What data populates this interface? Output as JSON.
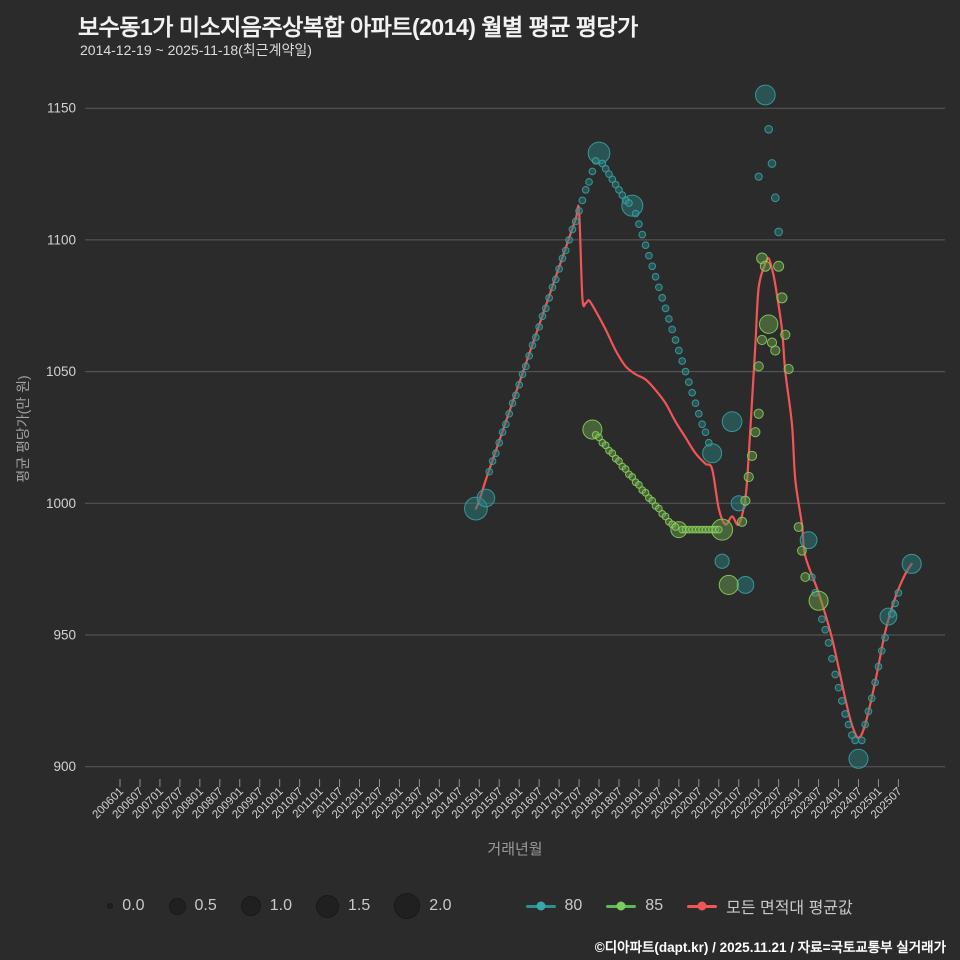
{
  "header": {
    "title": "보수동1가 미소지음주상복합 아파트(2014) 월별 평균 평당가",
    "subtitle": "2014-12-19 ~ 2025-11-18(최근계약일)"
  },
  "footer": {
    "credit": "©디아파트(dapt.kr) / 2025.11.21 / 자료=국토교통부 실거래가"
  },
  "colors": {
    "background": "#2b2b2b",
    "grid": "#6b6b6b",
    "tick_text": "#d2d2d2",
    "axis_title_text": "#9a9a9a",
    "title_text": "#f2f2f2",
    "teal_stroke": "#3aa6a6",
    "teal_fill": "#2a7d7d",
    "green_stroke": "#8fd45e",
    "green_fill": "#669c4a",
    "red_line": "#f25555",
    "legend_bubble": "#202020",
    "footer_text": "#ffffff"
  },
  "legend": {
    "sizes": [
      {
        "label": "0.0"
      },
      {
        "label": "0.5"
      },
      {
        "label": "1.0"
      },
      {
        "label": "1.5"
      },
      {
        "label": "2.0"
      }
    ]
  },
  "chart_data": {
    "type": "scatter",
    "title": "보수동1가 미소지음주상복합 아파트(2014) 월별 평균 평당가",
    "subtitle": "2014-12-19 ~ 2025-11-18(최근계약일)",
    "xlabel": "거래년월",
    "ylabel": "평균 평당가(만 원)",
    "ylim": [
      885,
      1162
    ],
    "y_ticks": [
      900,
      950,
      1000,
      1050,
      1100,
      1150
    ],
    "x_ticks": [
      "200601",
      "200607",
      "200701",
      "200707",
      "200801",
      "200807",
      "200901",
      "200907",
      "201001",
      "201007",
      "201101",
      "201107",
      "201201",
      "201207",
      "201301",
      "201307",
      "201401",
      "201407",
      "201501",
      "201507",
      "201601",
      "201607",
      "201701",
      "201707",
      "201801",
      "201807",
      "201901",
      "201907",
      "202001",
      "202007",
      "202101",
      "202107",
      "202201",
      "202207",
      "202301",
      "202307",
      "202401",
      "202407",
      "202501",
      "202507"
    ],
    "grid": true,
    "legend_position": "bottom",
    "size_legend_values": [
      0.0,
      0.5,
      1.0,
      1.5,
      2.0
    ],
    "series": [
      {
        "name": "80",
        "type": "scatter",
        "stroke": "#3aa6a6",
        "fill": "#2a7d7d",
        "points": [
          [
            201412,
            998,
            1.8
          ],
          [
            201503,
            1002,
            1.0
          ],
          [
            201504,
            1012
          ],
          [
            201505,
            1016
          ],
          [
            201506,
            1019
          ],
          [
            201507,
            1023
          ],
          [
            201508,
            1027
          ],
          [
            201509,
            1030
          ],
          [
            201510,
            1034
          ],
          [
            201511,
            1038
          ],
          [
            201512,
            1041
          ],
          [
            201601,
            1045
          ],
          [
            201602,
            1049
          ],
          [
            201603,
            1052
          ],
          [
            201604,
            1056
          ],
          [
            201605,
            1060
          ],
          [
            201606,
            1063
          ],
          [
            201607,
            1067
          ],
          [
            201608,
            1071
          ],
          [
            201609,
            1074
          ],
          [
            201610,
            1078
          ],
          [
            201611,
            1082
          ],
          [
            201612,
            1085
          ],
          [
            201701,
            1089
          ],
          [
            201702,
            1093
          ],
          [
            201703,
            1096
          ],
          [
            201704,
            1100
          ],
          [
            201705,
            1104
          ],
          [
            201706,
            1107
          ],
          [
            201707,
            1111
          ],
          [
            201708,
            1115
          ],
          [
            201709,
            1119
          ],
          [
            201710,
            1122
          ],
          [
            201711,
            1126
          ],
          [
            201712,
            1130
          ],
          [
            201801,
            1133,
            1.6
          ],
          [
            201802,
            1129
          ],
          [
            201803,
            1127
          ],
          [
            201804,
            1125
          ],
          [
            201805,
            1123
          ],
          [
            201806,
            1121
          ],
          [
            201807,
            1119
          ],
          [
            201808,
            1117
          ],
          [
            201809,
            1115
          ],
          [
            201810,
            1114
          ],
          [
            201811,
            1113,
            1.5
          ],
          [
            201812,
            1110
          ],
          [
            201901,
            1106
          ],
          [
            201902,
            1102
          ],
          [
            201903,
            1098
          ],
          [
            201904,
            1094
          ],
          [
            201905,
            1090
          ],
          [
            201906,
            1086
          ],
          [
            201907,
            1082
          ],
          [
            201908,
            1078
          ],
          [
            201909,
            1074
          ],
          [
            201910,
            1070
          ],
          [
            201911,
            1066
          ],
          [
            201912,
            1062
          ],
          [
            202001,
            1058
          ],
          [
            202002,
            1054
          ],
          [
            202003,
            1050
          ],
          [
            202004,
            1046
          ],
          [
            202005,
            1042
          ],
          [
            202006,
            1038
          ],
          [
            202007,
            1034
          ],
          [
            202008,
            1030
          ],
          [
            202009,
            1027
          ],
          [
            202010,
            1023
          ],
          [
            202011,
            1019,
            1.2
          ],
          [
            202102,
            978,
            0.6
          ],
          [
            202105,
            1031,
            1.3
          ],
          [
            202107,
            1000,
            0.7
          ],
          [
            202109,
            969,
            0.9
          ],
          [
            202201,
            1124,
            0.1
          ],
          [
            202203,
            1155,
            1.3
          ],
          [
            202204,
            1142,
            0.12
          ],
          [
            202205,
            1129,
            0.12
          ],
          [
            202206,
            1116,
            0.12
          ],
          [
            202207,
            1103,
            0.12
          ],
          [
            202304,
            986,
            0.9
          ],
          [
            202305,
            972
          ],
          [
            202306,
            966
          ],
          [
            202308,
            956
          ],
          [
            202309,
            952
          ],
          [
            202310,
            947
          ],
          [
            202311,
            941
          ],
          [
            202312,
            935
          ],
          [
            202401,
            930
          ],
          [
            202402,
            925
          ],
          [
            202403,
            920
          ],
          [
            202404,
            916
          ],
          [
            202405,
            912
          ],
          [
            202406,
            910
          ],
          [
            202407,
            903,
            1.2
          ],
          [
            202408,
            910
          ],
          [
            202409,
            916
          ],
          [
            202410,
            921
          ],
          [
            202411,
            926
          ],
          [
            202412,
            932
          ],
          [
            202501,
            938
          ],
          [
            202502,
            944
          ],
          [
            202503,
            949
          ],
          [
            202504,
            957,
            0.9
          ],
          [
            202505,
            958
          ],
          [
            202506,
            962
          ],
          [
            202507,
            966
          ],
          [
            202511,
            977,
            1.2
          ]
        ]
      },
      {
        "name": "85",
        "type": "scatter",
        "stroke": "#8fd45e",
        "fill": "#669c4a",
        "points": [
          [
            201711,
            1028,
            1.2
          ],
          [
            201712,
            1026
          ],
          [
            201801,
            1025
          ],
          [
            201802,
            1023
          ],
          [
            201803,
            1022
          ],
          [
            201804,
            1020
          ],
          [
            201805,
            1019
          ],
          [
            201806,
            1017
          ],
          [
            201807,
            1016
          ],
          [
            201808,
            1014
          ],
          [
            201809,
            1013
          ],
          [
            201810,
            1011
          ],
          [
            201811,
            1010
          ],
          [
            201812,
            1008
          ],
          [
            201901,
            1007
          ],
          [
            201902,
            1005
          ],
          [
            201903,
            1004
          ],
          [
            201904,
            1002
          ],
          [
            201905,
            1001
          ],
          [
            201906,
            999
          ],
          [
            201907,
            998
          ],
          [
            201908,
            996
          ],
          [
            201909,
            995
          ],
          [
            201910,
            993
          ],
          [
            201911,
            992
          ],
          [
            201912,
            991
          ],
          [
            202001,
            990,
            0.8
          ],
          [
            202002,
            990
          ],
          [
            202003,
            990
          ],
          [
            202004,
            990
          ],
          [
            202005,
            990
          ],
          [
            202006,
            990
          ],
          [
            202007,
            990
          ],
          [
            202008,
            990
          ],
          [
            202009,
            990
          ],
          [
            202010,
            990
          ],
          [
            202011,
            990
          ],
          [
            202012,
            990
          ],
          [
            202101,
            990
          ],
          [
            202102,
            990,
            1.5
          ],
          [
            202104,
            969,
            1.2
          ],
          [
            202108,
            993,
            0.2
          ],
          [
            202109,
            1001,
            0.2
          ],
          [
            202110,
            1010,
            0.2
          ],
          [
            202111,
            1018,
            0.2
          ],
          [
            202112,
            1027,
            0.2
          ],
          [
            202201,
            1034,
            0.2
          ],
          [
            202201,
            1052,
            0.2
          ],
          [
            202202,
            1062,
            0.2
          ],
          [
            202202,
            1093,
            0.3
          ],
          [
            202203,
            1090,
            0.25
          ],
          [
            202204,
            1068,
            1.1
          ],
          [
            202205,
            1061,
            0.2
          ],
          [
            202206,
            1058,
            0.2
          ],
          [
            202207,
            1090,
            0.25
          ],
          [
            202208,
            1078,
            0.25
          ],
          [
            202209,
            1064,
            0.2
          ],
          [
            202210,
            1051,
            0.2
          ],
          [
            202301,
            991,
            0.18
          ],
          [
            202302,
            982,
            0.18
          ],
          [
            202303,
            972,
            0.18
          ],
          [
            202307,
            963,
            1.2
          ]
        ]
      },
      {
        "name": "모든 면적대 평균값",
        "type": "line",
        "stroke": "#f25555",
        "fill": "#f25555",
        "points": [
          [
            201412,
            998
          ],
          [
            201501,
            1001
          ],
          [
            201503,
            1009
          ],
          [
            201506,
            1020
          ],
          [
            201509,
            1031
          ],
          [
            201512,
            1042
          ],
          [
            201603,
            1053
          ],
          [
            201606,
            1064
          ],
          [
            201609,
            1075
          ],
          [
            201612,
            1086
          ],
          [
            201703,
            1097
          ],
          [
            201706,
            1108
          ],
          [
            201707,
            1111
          ],
          [
            201708,
            1078
          ],
          [
            201709,
            1076
          ],
          [
            201710,
            1077
          ],
          [
            201712,
            1073
          ],
          [
            201803,
            1066
          ],
          [
            201806,
            1058
          ],
          [
            201809,
            1052
          ],
          [
            201812,
            1049
          ],
          [
            201903,
            1047
          ],
          [
            201906,
            1043
          ],
          [
            201909,
            1038
          ],
          [
            201912,
            1031
          ],
          [
            202003,
            1025
          ],
          [
            202006,
            1019
          ],
          [
            202009,
            1015
          ],
          [
            202011,
            1013
          ],
          [
            202101,
            998
          ],
          [
            202103,
            992
          ],
          [
            202105,
            995
          ],
          [
            202107,
            992
          ],
          [
            202109,
            1002
          ],
          [
            202110,
            1018
          ],
          [
            202111,
            1039
          ],
          [
            202112,
            1060
          ],
          [
            202201,
            1082
          ],
          [
            202203,
            1091
          ],
          [
            202204,
            1093
          ],
          [
            202205,
            1089
          ],
          [
            202206,
            1083
          ],
          [
            202208,
            1066
          ],
          [
            202209,
            1050
          ],
          [
            202211,
            1030
          ],
          [
            202212,
            1009
          ],
          [
            202302,
            992
          ],
          [
            202303,
            980
          ],
          [
            202307,
            966
          ],
          [
            202311,
            949
          ],
          [
            202403,
            926
          ],
          [
            202405,
            916
          ],
          [
            202407,
            911
          ],
          [
            202409,
            916
          ],
          [
            202412,
            932
          ],
          [
            202503,
            951
          ],
          [
            202506,
            964
          ],
          [
            202509,
            973
          ],
          [
            202511,
            977
          ]
        ]
      }
    ]
  }
}
